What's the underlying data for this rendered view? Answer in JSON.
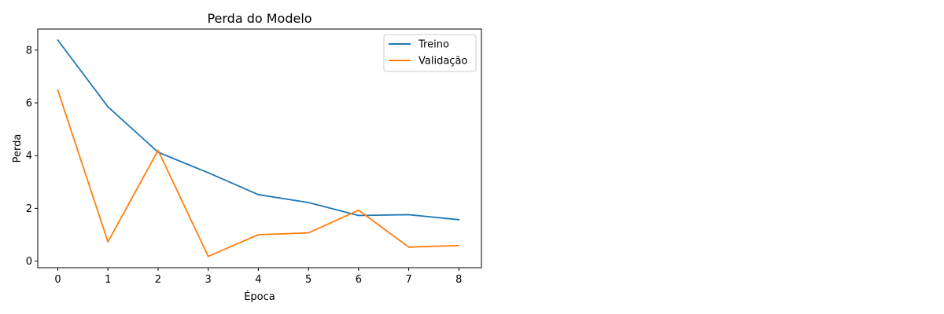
{
  "chart_data": {
    "type": "line",
    "title": "Perda do Modelo",
    "xlabel": "Época",
    "ylabel": "Perda",
    "x": [
      0,
      1,
      2,
      3,
      4,
      5,
      6,
      7,
      8
    ],
    "xticks": [
      0,
      1,
      2,
      3,
      4,
      5,
      6,
      7,
      8
    ],
    "yticks": [
      0,
      2,
      4,
      6,
      8
    ],
    "xlim": [
      -0.4,
      8.45
    ],
    "ylim": [
      -0.25,
      8.8
    ],
    "grid": false,
    "legend_position": "top-right",
    "series": [
      {
        "name": "Treino",
        "color": "#1f77b4",
        "values": [
          8.38,
          5.85,
          4.13,
          3.35,
          2.52,
          2.22,
          1.73,
          1.76,
          1.57
        ]
      },
      {
        "name": "Validação",
        "color": "#ff7f0e",
        "values": [
          6.48,
          0.73,
          4.2,
          0.18,
          1.0,
          1.07,
          1.93,
          0.53,
          0.59
        ]
      }
    ]
  }
}
